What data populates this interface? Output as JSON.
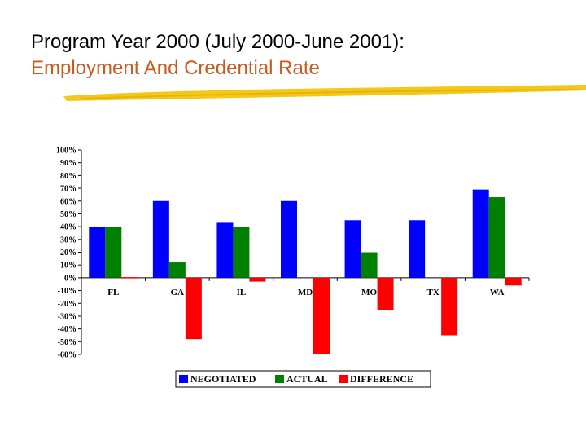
{
  "slide": {
    "title_line1": "Program Year 2000 (July 2000-June 2001):",
    "title_line2": "Employment And Credential Rate"
  },
  "colors": {
    "title_accent": "#c85a1e",
    "underline": "#f2c200"
  },
  "chart_data": {
    "type": "bar",
    "categories": [
      "FL",
      "GA",
      "IL",
      "MD",
      "MO",
      "TX",
      "WA"
    ],
    "series": [
      {
        "name": "NEGOTIATED",
        "color": "#0000ff",
        "values": [
          40,
          60,
          43,
          60,
          45,
          45,
          69
        ]
      },
      {
        "name": "ACTUAL",
        "color": "#008000",
        "values": [
          40,
          12,
          40,
          null,
          20,
          null,
          63
        ]
      },
      {
        "name": "DIFFERENCE",
        "color": "#ff0000",
        "values": [
          0,
          -48,
          -3,
          -60,
          -25,
          -45,
          -6
        ]
      }
    ],
    "ylim": [
      -60,
      100
    ],
    "yticks": [
      "100%",
      "90%",
      "80%",
      "70%",
      "60%",
      "50%",
      "40%",
      "30%",
      "20%",
      "10%",
      "0%",
      "-10%",
      "-20%",
      "-30%",
      "-40%",
      "-50%",
      "-60%"
    ],
    "legend_position": "bottom",
    "grid": false
  }
}
